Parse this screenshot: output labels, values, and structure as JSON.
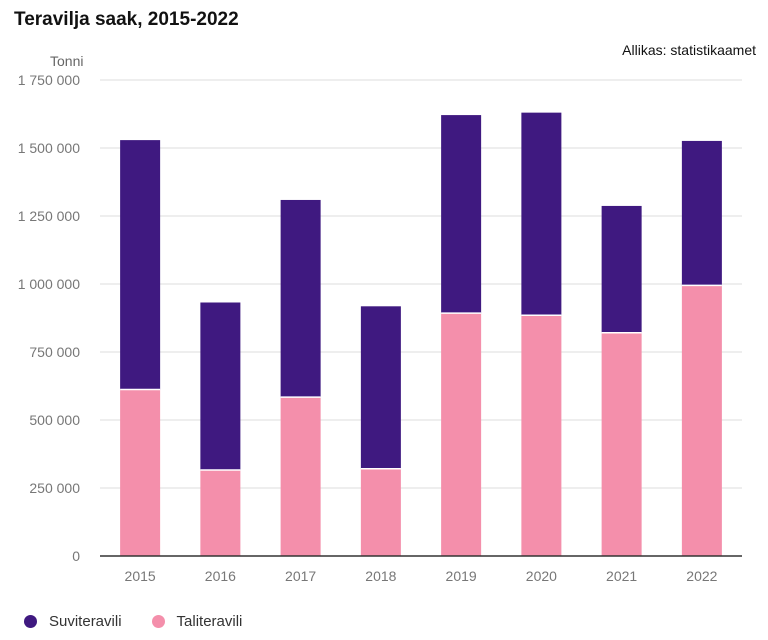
{
  "header": {
    "title": "Teravilja saak, 2015-2022",
    "source": "Allikas: statistikaamet",
    "unit": "Tonni"
  },
  "chart_data": {
    "type": "bar",
    "stacked": true,
    "title": "Teravilja saak, 2015-2022",
    "xlabel": "",
    "ylabel": "Tonni",
    "ylim": [
      0,
      1750000
    ],
    "yticks": [
      0,
      250000,
      500000,
      750000,
      1000000,
      1250000,
      1500000,
      1750000
    ],
    "ytick_labels": [
      "0",
      "250 000",
      "500 000",
      "750 000",
      "1 000 000",
      "1 250 000",
      "1 500 000",
      "1 750 000"
    ],
    "categories": [
      "2015",
      "2016",
      "2017",
      "2018",
      "2019",
      "2020",
      "2021",
      "2022"
    ],
    "series": [
      {
        "name": "Taliteravili",
        "color": "#f48fab",
        "values": [
          612000,
          316000,
          584000,
          321000,
          893000,
          885000,
          821000,
          995000
        ]
      },
      {
        "name": "Suviteravili",
        "color": "#3f1980",
        "values": [
          917000,
          616000,
          725000,
          597000,
          728000,
          745000,
          466000,
          531000
        ]
      }
    ],
    "legend": [
      {
        "name": "Suviteravili",
        "color": "#3f1980"
      },
      {
        "name": "Taliteravili",
        "color": "#f48fab"
      }
    ],
    "grid": true,
    "legend_position": "bottom-left"
  }
}
